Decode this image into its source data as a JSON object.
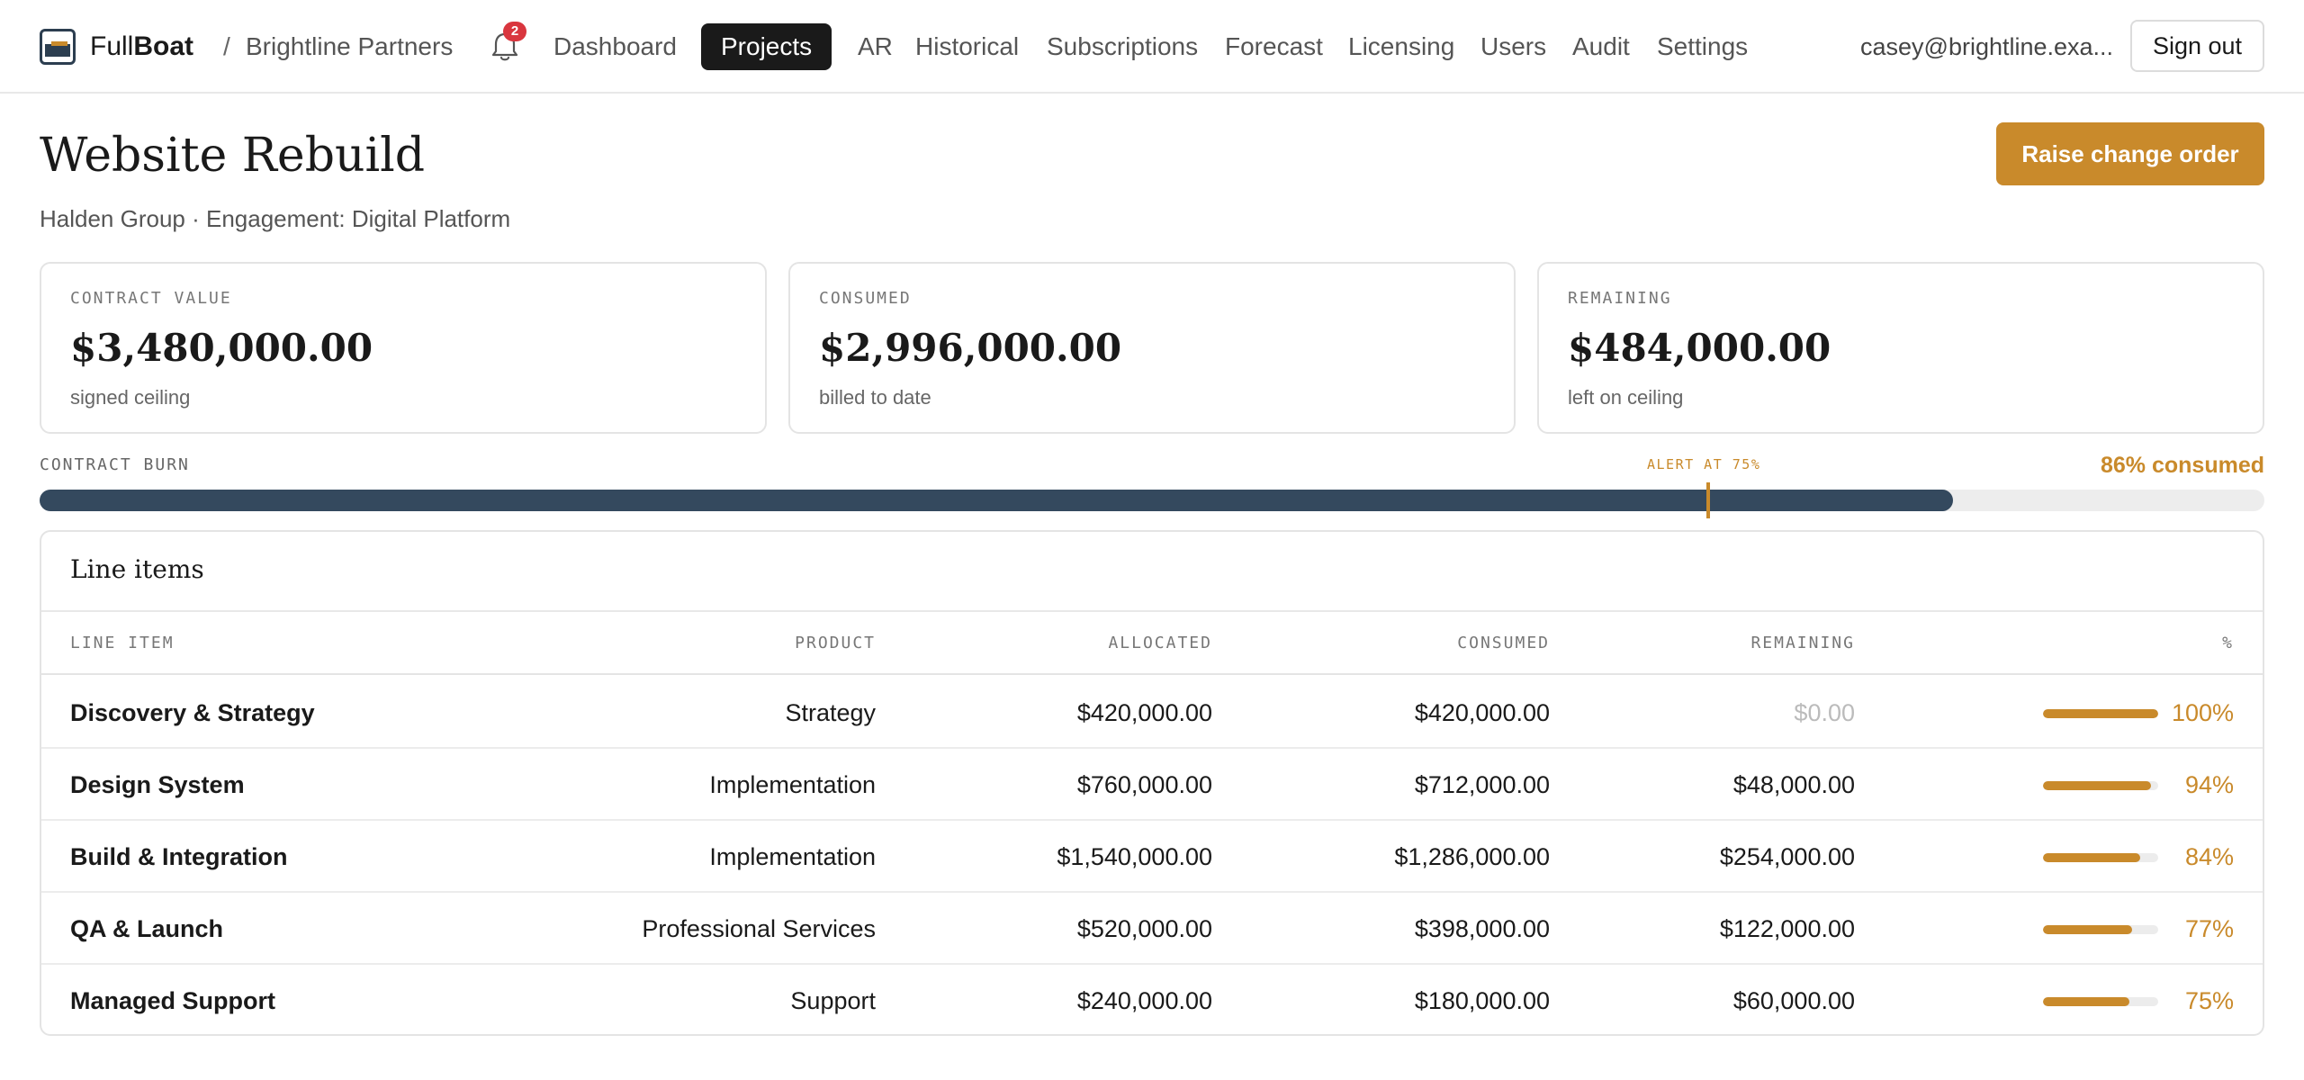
{
  "app": {
    "brand_light": "Full",
    "brand_bold": "Boat",
    "breadcrumb_sep": "/",
    "org": "Brightline Partners",
    "notification_count": "2",
    "nav": [
      {
        "label": "Dashboard",
        "active": false
      },
      {
        "label": "Projects",
        "active": true
      },
      {
        "label": "AR",
        "active": false
      },
      {
        "label": "Historical",
        "active": false
      },
      {
        "label": "Subscriptions",
        "active": false
      },
      {
        "label": "Forecast",
        "active": false
      },
      {
        "label": "Licensing",
        "active": false
      },
      {
        "label": "Users",
        "active": false
      },
      {
        "label": "Audit",
        "active": false
      },
      {
        "label": "Settings",
        "active": false
      }
    ],
    "user_email": "casey@brightline.exa...",
    "sign_out_label": "Sign out",
    "icons": {
      "logo": "boat-logo-icon",
      "bell": "bell-icon"
    },
    "colors": {
      "accent": "#c98a2b",
      "dark": "#1a1a1a",
      "bar": "#34495e",
      "badge": "#d9363e"
    }
  },
  "page": {
    "title": "Website Rebuild",
    "subtitle": "Halden Group · Engagement: Digital Platform",
    "raise_change_order_label": "Raise change order"
  },
  "stats": [
    {
      "label": "CONTRACT VALUE",
      "value": "$3,480,000.00",
      "note": "signed ceiling"
    },
    {
      "label": "CONSUMED",
      "value": "$2,996,000.00",
      "note": "billed to date"
    },
    {
      "label": "REMAINING",
      "value": "$484,000.00",
      "note": "left on ceiling"
    }
  ],
  "burn": {
    "label": "CONTRACT BURN",
    "alert_label": "ALERT AT 75%",
    "alert_threshold": 0.75,
    "consumed_fraction": 0.86,
    "consumed_text": "86% consumed"
  },
  "line_items": {
    "title": "Line items",
    "columns": [
      "LINE ITEM",
      "PRODUCT",
      "ALLOCATED",
      "CONSUMED",
      "REMAINING",
      "%"
    ],
    "rows": [
      {
        "name": "Discovery & Strategy",
        "product": "Strategy",
        "allocated": "$420,000.00",
        "consumed": "$420,000.00",
        "remaining": "$0.00",
        "remaining_zero": true,
        "pct_text": "100%",
        "pct": 1.0
      },
      {
        "name": "Design System",
        "product": "Implementation",
        "allocated": "$760,000.00",
        "consumed": "$712,000.00",
        "remaining": "$48,000.00",
        "remaining_zero": false,
        "pct_text": "94%",
        "pct": 0.94
      },
      {
        "name": "Build & Integration",
        "product": "Implementation",
        "allocated": "$1,540,000.00",
        "consumed": "$1,286,000.00",
        "remaining": "$254,000.00",
        "remaining_zero": false,
        "pct_text": "84%",
        "pct": 0.84
      },
      {
        "name": "QA & Launch",
        "product": "Professional Services",
        "allocated": "$520,000.00",
        "consumed": "$398,000.00",
        "remaining": "$122,000.00",
        "remaining_zero": false,
        "pct_text": "77%",
        "pct": 0.77
      },
      {
        "name": "Managed Support",
        "product": "Support",
        "allocated": "$240,000.00",
        "consumed": "$180,000.00",
        "remaining": "$60,000.00",
        "remaining_zero": false,
        "pct_text": "75%",
        "pct": 0.75
      }
    ]
  }
}
